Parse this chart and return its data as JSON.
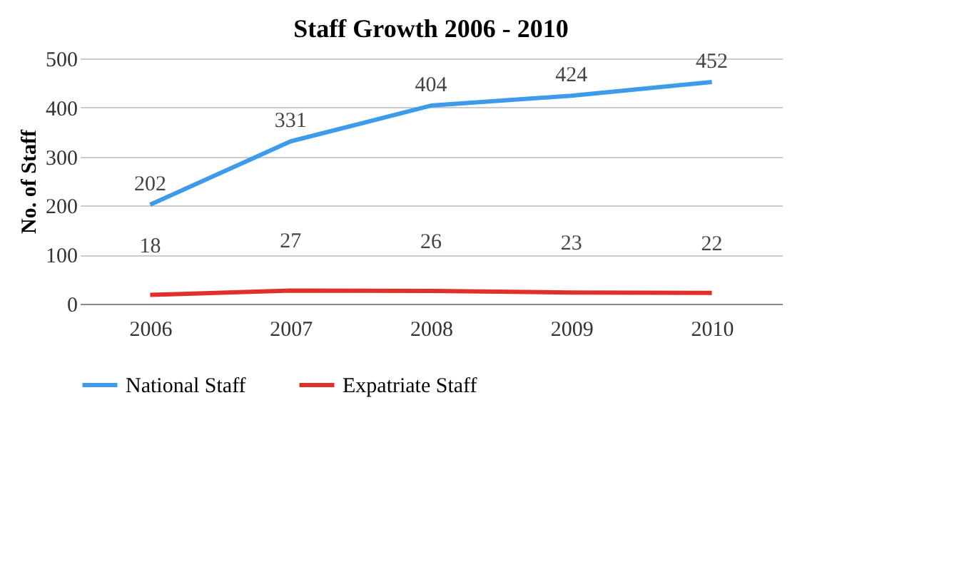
{
  "chart_data": {
    "type": "line",
    "title": "Staff Growth 2006 - 2010",
    "ylabel": "No. of Staff",
    "categories": [
      "2006",
      "2007",
      "2008",
      "2009",
      "2010"
    ],
    "series": [
      {
        "name": "National Staff",
        "color": "#3d9be9",
        "values": [
          202,
          331,
          404,
          424,
          452
        ]
      },
      {
        "name": "Expatriate Staff",
        "color": "#e0302a",
        "values": [
          18,
          27,
          26,
          23,
          22
        ]
      }
    ],
    "ylim": [
      0,
      500
    ],
    "yticks": [
      0,
      100,
      200,
      300,
      400,
      500
    ],
    "grid": "y",
    "legend": "bottom",
    "data_labels": true,
    "marker": "none",
    "line_style": "solid"
  }
}
